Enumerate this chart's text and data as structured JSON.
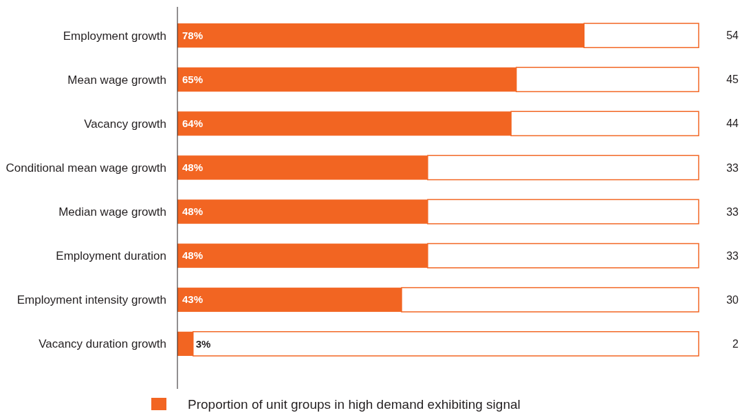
{
  "chart_data": {
    "type": "bar",
    "orientation": "horizontal",
    "stacked": true,
    "categories": [
      "Employment growth",
      "Mean wage growth",
      "Vacancy growth",
      "Conditional mean wage growth",
      "Median wage growth",
      "Employment duration",
      "Employment intensity growth",
      "Vacancy duration growth"
    ],
    "series": [
      {
        "name": "Proportion of unit groups in high demand exhibiting signal",
        "color": "#f26522",
        "values": [
          78,
          65,
          64,
          48,
          48,
          48,
          43,
          3
        ],
        "value_labels": [
          "78%",
          "65%",
          "64%",
          "48%",
          "48%",
          "48%",
          "43%",
          "3%"
        ]
      },
      {
        "color": "#ffffff",
        "values": [
          22,
          35,
          36,
          52,
          52,
          52,
          57,
          97
        ]
      }
    ],
    "legend": "bottom",
    "tick_labels": "y",
    "annotations": [
      "54",
      "45",
      "44",
      "33",
      "33",
      "33",
      "30",
      "2"
    ]
  }
}
